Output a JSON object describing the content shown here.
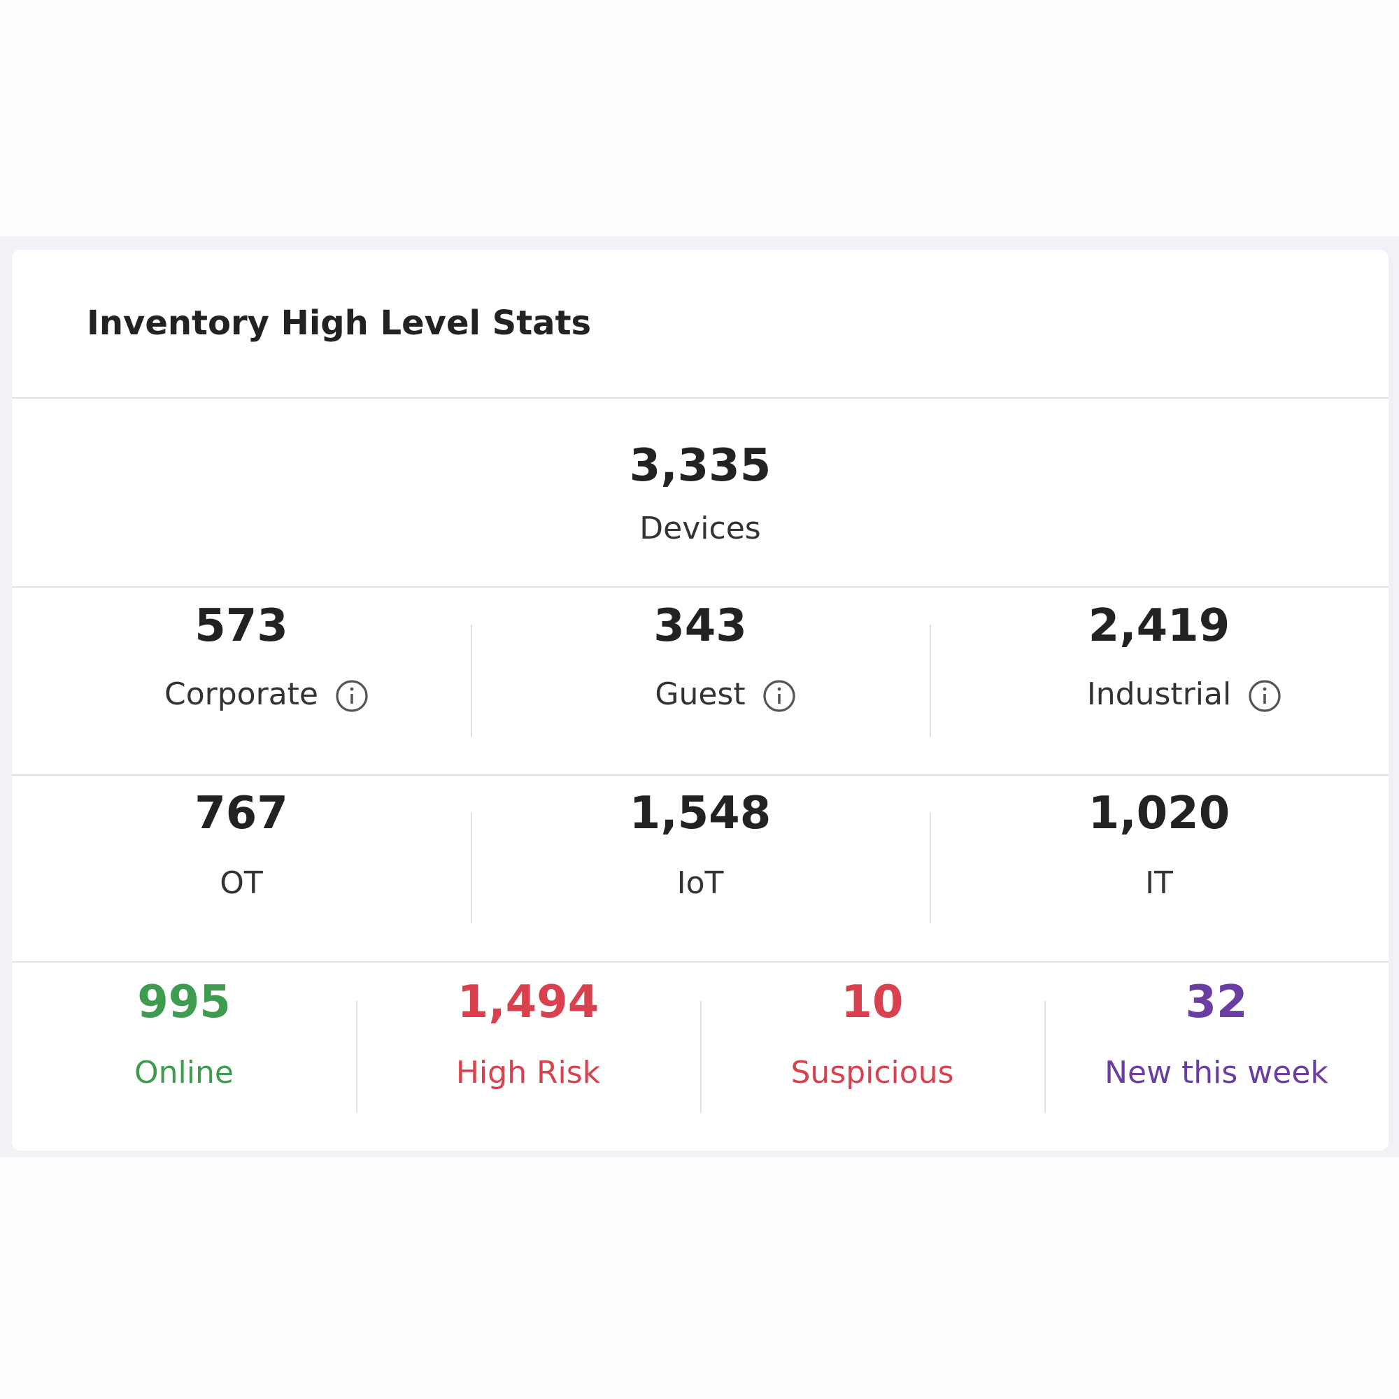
{
  "header": {
    "title": "Inventory High Level Stats"
  },
  "total": {
    "value": "3,335",
    "label": "Devices"
  },
  "segments": [
    {
      "value": "573",
      "label": "Corporate",
      "info": true
    },
    {
      "value": "343",
      "label": "Guest",
      "info": true
    },
    {
      "value": "2,419",
      "label": "Industrial",
      "info": true
    }
  ],
  "types": [
    {
      "value": "767",
      "label": "OT"
    },
    {
      "value": "1,548",
      "label": "IoT"
    },
    {
      "value": "1,020",
      "label": "IT"
    }
  ],
  "status": [
    {
      "value": "995",
      "label": "Online",
      "color": "#3f9b4f"
    },
    {
      "value": "1,494",
      "label": "High Risk",
      "color": "#d9414f"
    },
    {
      "value": "10",
      "label": "Suspicious",
      "color": "#d9414f"
    },
    {
      "value": "32",
      "label": "New this week",
      "color": "#6a3da3"
    }
  ]
}
